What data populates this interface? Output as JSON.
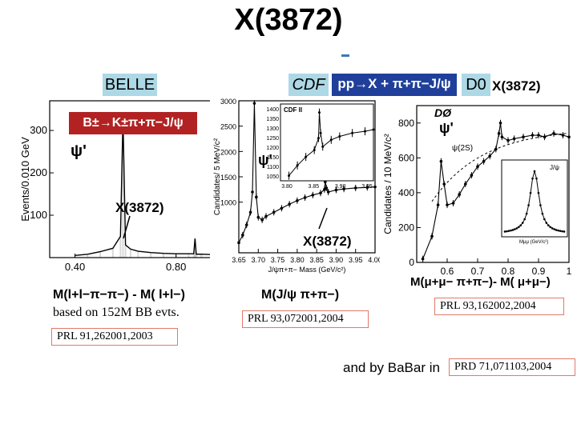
{
  "title": "X(3872)",
  "colors": {
    "label_box": "#add8e6",
    "decay_box": "#b22222",
    "cite_border": "#e07a6a",
    "cdf_banner": "#1f3f9a"
  },
  "labels": {
    "belle": "BELLE",
    "cdf": "CDF",
    "d0": "D0",
    "cdf_banner": "pp→X + π+π−J/ψ",
    "d0_x": "X(3872)",
    "belle_decay": "B±→K±π+π−J/ψ"
  },
  "belle": {
    "psi_label": "ψ'",
    "x_label": "X(3872)",
    "mass_formula": "M(l+l−π−π−) - M( l+l−)",
    "events": "based on 152M BB evts.",
    "citation": "PRL 91,262001,2003"
  },
  "cdf": {
    "psi_label": "ψ'",
    "x_label": "X(3872)",
    "mass_formula": "M(J/ψ π+π−)",
    "citation": "PRL 93,072001,2004"
  },
  "d0": {
    "psi_label": "ψ'",
    "mass_formula": "M(μ+μ− π+π−)- M( μ+μ−)",
    "citation": "PRL 93,162002,2004"
  },
  "babar": {
    "text": "and by BaBar in",
    "citation": "PRD 71,071103,2004"
  },
  "chart_data": [
    {
      "type": "histogram",
      "experiment": "BELLE",
      "xlabel": "",
      "ylabel": "Events/0.010 GeV",
      "xlim": [
        0.3,
        0.95
      ],
      "ylim": [
        0,
        370
      ],
      "xticks": [
        "0.40",
        "0.80"
      ],
      "yticks": [
        "100",
        "200",
        "300"
      ],
      "x": [
        0.4,
        0.45,
        0.5,
        0.55,
        0.58,
        0.59,
        0.6,
        0.62,
        0.65,
        0.7,
        0.75,
        0.8,
        0.85,
        0.87,
        0.875,
        0.88,
        0.9,
        0.95
      ],
      "y": [
        5,
        8,
        14,
        22,
        50,
        330,
        30,
        20,
        15,
        12,
        10,
        9,
        9,
        9,
        45,
        8,
        8,
        7
      ]
    },
    {
      "type": "scatter",
      "experiment": "CDF",
      "xlabel": "J/ψπ+π− Mass  (GeV/c²)",
      "ylabel": "Candidates/ 5 MeV/c²",
      "xlim": [
        3.65,
        4.0
      ],
      "ylim": [
        0,
        3000
      ],
      "xticks": [
        "3.65",
        "3.70",
        "3.75",
        "3.80",
        "3.85",
        "3.90",
        "3.95",
        "4.00"
      ],
      "yticks": [
        "1000",
        "1500",
        "2000",
        "2500",
        "3000"
      ],
      "x": [
        3.65,
        3.66,
        3.67,
        3.68,
        3.685,
        3.69,
        3.695,
        3.7,
        3.71,
        3.72,
        3.74,
        3.76,
        3.78,
        3.8,
        3.82,
        3.84,
        3.86,
        3.87,
        3.872,
        3.875,
        3.88,
        3.9,
        3.92,
        3.95,
        3.98,
        4.0
      ],
      "y": [
        200,
        350,
        550,
        800,
        1200,
        2950,
        1100,
        700,
        650,
        720,
        800,
        880,
        960,
        1030,
        1090,
        1140,
        1180,
        1250,
        1400,
        1280,
        1200,
        1240,
        1260,
        1280,
        1290,
        1300
      ],
      "inset": {
        "label": "CDF II",
        "xticks": [
          "3.80",
          "3.85",
          "3.90",
          "3.95"
        ],
        "yticks": [
          "1050",
          "1100",
          "1150",
          "1200",
          "1250",
          "1300",
          "1350",
          "1400"
        ]
      }
    },
    {
      "type": "scatter",
      "experiment": "D0",
      "xlabel": "",
      "ylabel": "Candidates / 10 MeV/c²",
      "xlim": [
        0.5,
        1.0
      ],
      "ylim": [
        0,
        900
      ],
      "xticks": [
        "0.6",
        "0.7",
        "0.8",
        "0.9",
        "1"
      ],
      "yticks": [
        "0",
        "200",
        "400",
        "600",
        "800"
      ],
      "x": [
        0.52,
        0.55,
        0.57,
        0.58,
        0.59,
        0.6,
        0.62,
        0.64,
        0.66,
        0.68,
        0.7,
        0.72,
        0.74,
        0.76,
        0.77,
        0.775,
        0.78,
        0.8,
        0.82,
        0.85,
        0.88,
        0.9,
        0.92,
        0.95,
        0.98,
        1.0
      ],
      "y": [
        20,
        150,
        330,
        580,
        450,
        330,
        340,
        390,
        450,
        500,
        550,
        580,
        610,
        650,
        740,
        800,
        720,
        700,
        710,
        720,
        730,
        730,
        720,
        740,
        730,
        720
      ],
      "legend": [
        "DØ",
        "ψ(2S)"
      ],
      "inset": {
        "label": "J/ψ",
        "xlabel": "Mμμ (GeV/c²)"
      }
    }
  ]
}
